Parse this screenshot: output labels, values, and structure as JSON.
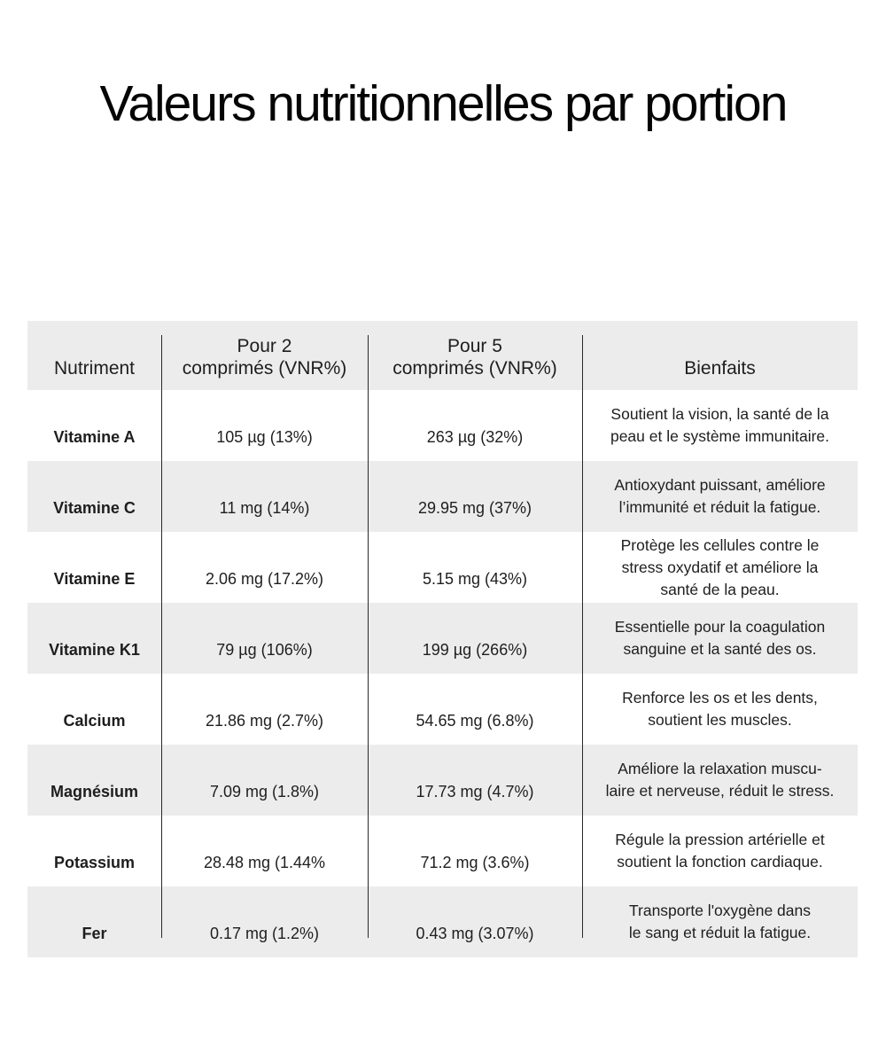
{
  "page": {
    "title": "Valeurs nutritionnelles par portion"
  },
  "colors": {
    "row_alt_bg": "#ececec",
    "divider": "#29292b",
    "text": "#1e1e20",
    "title": "#050505"
  },
  "table": {
    "headers": {
      "nutrient": "Nutriment",
      "per2": "Pour 2\ncomprimés (VNR%)",
      "per5": "Pour 5\ncomprimés (VNR%)",
      "benefits": "Bienfaits"
    },
    "rows": [
      {
        "nutrient": "Vitamine A",
        "per2": "105 µg (13%)",
        "per5": "263 µg (32%)",
        "benefit": "Soutient la vision, la santé de la\npeau et le système immunitaire."
      },
      {
        "nutrient": "Vitamine C",
        "per2": "11 mg (14%)",
        "per5": "29.95 mg (37%)",
        "benefit": "Antioxydant puissant, améliore\nl’immunité et réduit la fatigue."
      },
      {
        "nutrient": "Vitamine E",
        "per2": "2.06 mg (17.2%)",
        "per5": "5.15 mg (43%)",
        "benefit": "Protège les cellules contre le\nstress oxydatif et améliore la\nsanté de la peau."
      },
      {
        "nutrient": "Vitamine K1",
        "per2": "79 µg (106%)",
        "per5": "199 µg (266%)",
        "benefit": "Essentielle pour la coagulation\nsanguine et la santé des os."
      },
      {
        "nutrient": "Calcium",
        "per2": "21.86 mg (2.7%)",
        "per5": "54.65 mg (6.8%)",
        "benefit": "Renforce les os et les dents,\nsoutient les muscles."
      },
      {
        "nutrient": "Magnésium",
        "per2": "7.09 mg (1.8%)",
        "per5": "17.73 mg (4.7%)",
        "benefit": "Améliore la relaxation muscu-\nlaire et nerveuse, réduit le stress."
      },
      {
        "nutrient": "Potassium",
        "per2": "28.48 mg (1.44%",
        "per5": "71.2 mg (3.6%)",
        "benefit": "Régule la pression artérielle et\nsoutient la fonction cardiaque."
      },
      {
        "nutrient": "Fer",
        "per2": "0.17 mg (1.2%)",
        "per5": "0.43 mg (3.07%)",
        "benefit": "Transporte l'oxygène dans\nle sang et réduit la fatigue."
      }
    ]
  }
}
